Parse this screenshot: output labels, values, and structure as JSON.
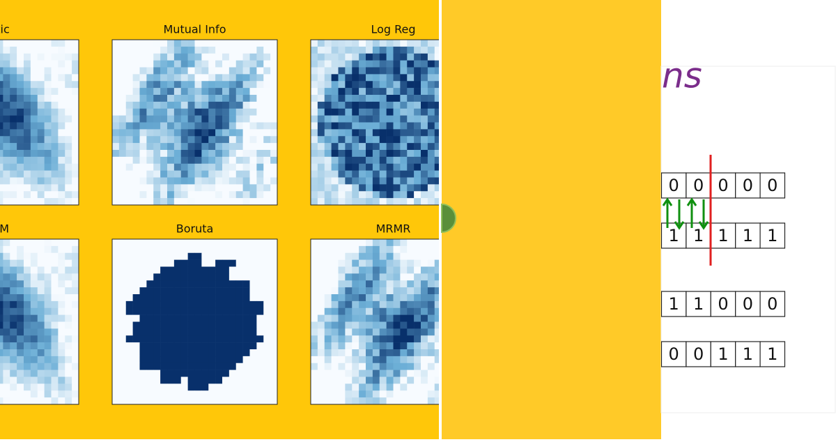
{
  "feature_maps": {
    "plots": [
      {
        "title": "tistic"
      },
      {
        "title": "Mutual Info"
      },
      {
        "title": "Log Reg"
      },
      {
        "title": "GBM"
      },
      {
        "title": "Boruta"
      },
      {
        "title": "MRMR"
      }
    ]
  },
  "slide": {
    "heading": "ns",
    "rows": [
      [
        0,
        0,
        0,
        0,
        0
      ],
      [
        1,
        1,
        1,
        1,
        1
      ],
      [
        1,
        1,
        0,
        0,
        0
      ],
      [
        0,
        0,
        1,
        1,
        1
      ]
    ]
  }
}
